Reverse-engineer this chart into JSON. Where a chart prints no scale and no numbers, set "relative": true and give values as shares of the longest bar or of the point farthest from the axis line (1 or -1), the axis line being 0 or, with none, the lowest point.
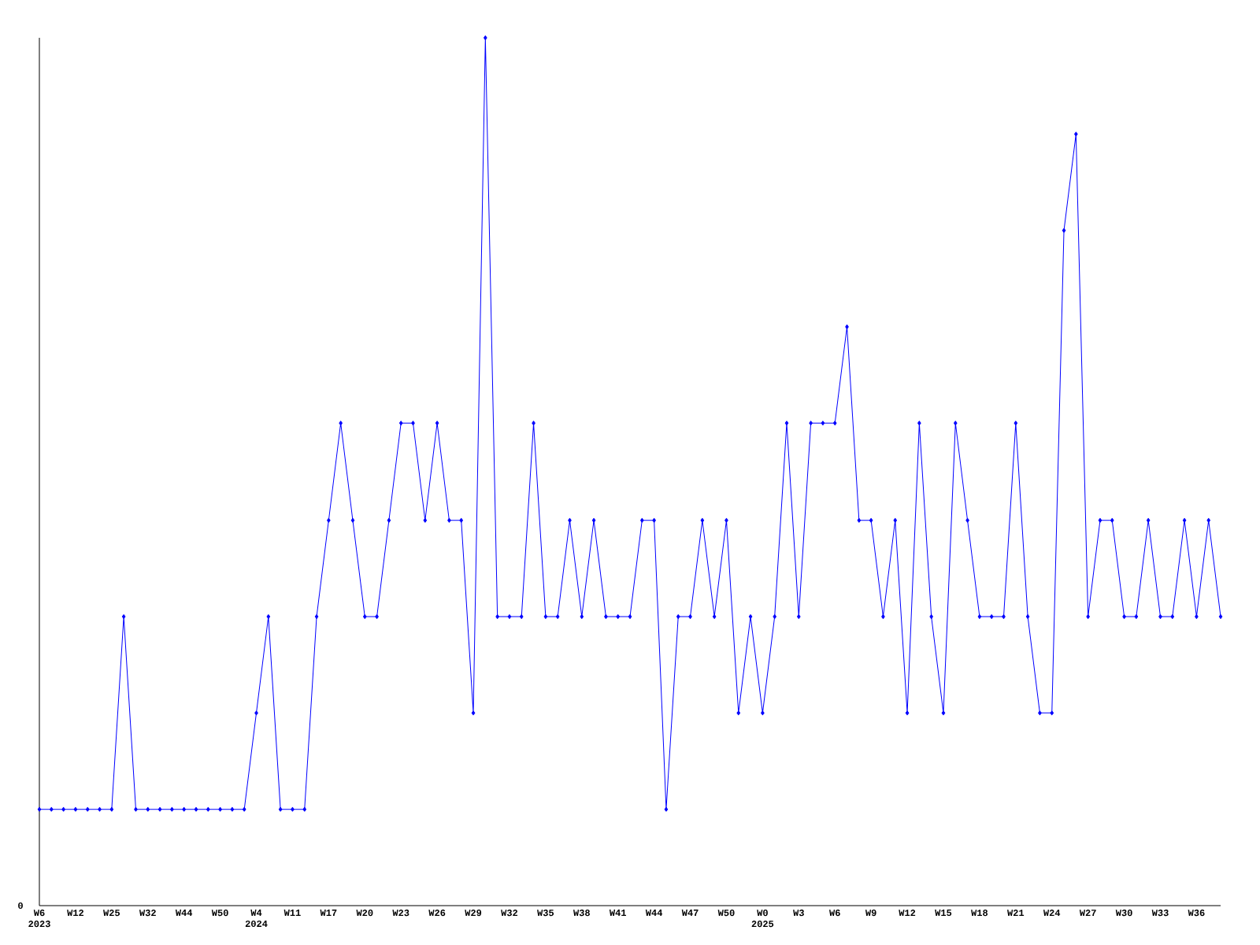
{
  "chart_data": {
    "type": "line",
    "relative": true,
    "color": "#0000ff",
    "marker": "diamond",
    "categories": [
      "W6 2023",
      null,
      null,
      "W12",
      null,
      null,
      "W25",
      null,
      null,
      "W32",
      null,
      null,
      "W44",
      null,
      null,
      "W50",
      null,
      null,
      "W4 2024",
      null,
      null,
      "W11",
      null,
      null,
      "W17",
      null,
      null,
      "W20",
      null,
      null,
      "W23",
      null,
      null,
      "W26",
      null,
      null,
      "W29",
      null,
      null,
      "W32",
      null,
      null,
      "W35",
      null,
      null,
      "W38",
      null,
      null,
      "W41",
      null,
      null,
      "W44",
      null,
      null,
      "W47",
      null,
      null,
      "W50",
      null,
      null,
      "W0 2025",
      null,
      null,
      "W3",
      null,
      null,
      "W6",
      null,
      null,
      "W9",
      null,
      null,
      "W12",
      null,
      null,
      "W15",
      null,
      null,
      "W18",
      null,
      null,
      "W21",
      null,
      null,
      "W24",
      null,
      null,
      "W27",
      null,
      null,
      "W30",
      null,
      null,
      "W33",
      null,
      null,
      "W36",
      null,
      null
    ],
    "values": [
      0.111,
      0.111,
      0.111,
      0.111,
      0.111,
      0.111,
      0.111,
      0.333,
      0.111,
      0.111,
      0.111,
      0.111,
      0.111,
      0.111,
      0.111,
      0.111,
      0.111,
      0.111,
      0.222,
      0.333,
      0.111,
      0.111,
      0.111,
      0.333,
      0.444,
      0.556,
      0.444,
      0.333,
      0.333,
      0.444,
      0.556,
      0.556,
      0.444,
      0.556,
      0.444,
      0.444,
      0.222,
      1,
      0.333,
      0.333,
      0.333,
      0.556,
      0.333,
      0.333,
      0.444,
      0.333,
      0.444,
      0.333,
      0.333,
      0.333,
      0.444,
      0.444,
      0.111,
      0.333,
      0.333,
      0.444,
      0.333,
      0.444,
      0.222,
      0.333,
      0.222,
      0.333,
      0.556,
      0.333,
      0.556,
      0.556,
      0.556,
      0.667,
      0.444,
      0.444,
      0.333,
      0.444,
      0.222,
      0.556,
      0.333,
      0.222,
      0.556,
      0.444,
      0.333,
      0.333,
      0.333,
      0.556,
      0.333,
      0.222,
      0.222,
      0.778,
      0.889,
      0.333,
      0.444,
      0.444,
      0.333,
      0.333,
      0.444,
      0.333,
      0.333,
      0.444,
      0.333,
      0.444,
      0.333
    ],
    "annotations": [
      "0"
    ]
  }
}
